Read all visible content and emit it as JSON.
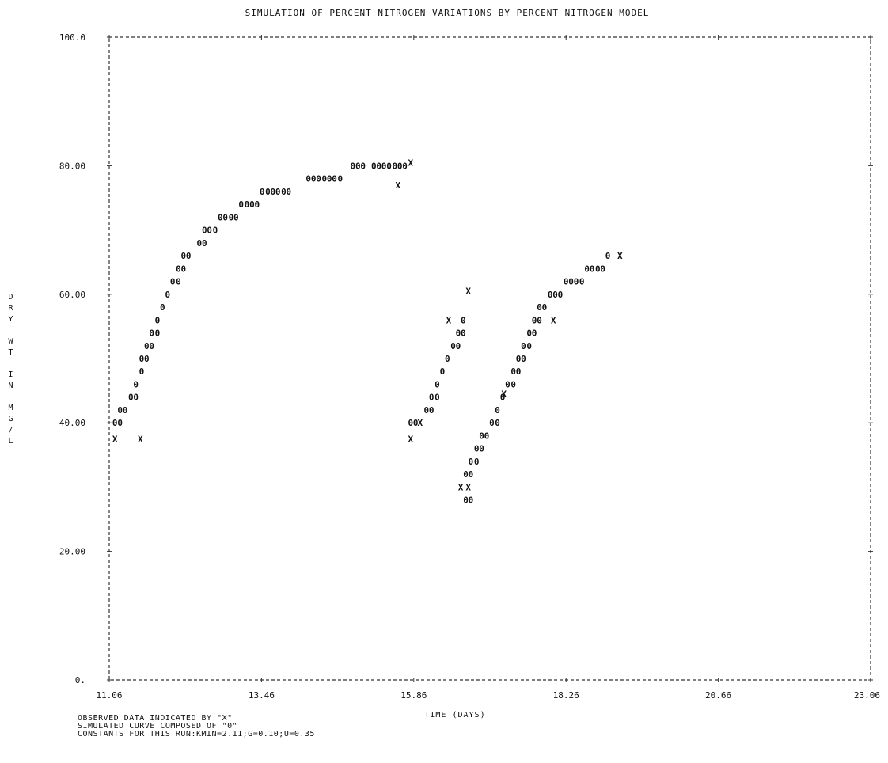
{
  "chart_data": {
    "type": "scatter",
    "title": "SIMULATION OF PERCENT NITROGEN VARIATIONS BY PERCENT NITROGEN MODEL",
    "xlabel": "TIME (DAYS)",
    "ylabel": "DRY WT IN MG/L",
    "xlim": [
      11.06,
      23.06
    ],
    "ylim": [
      0,
      100
    ],
    "x_ticks": [
      "11.06",
      "13.46",
      "15.86",
      "18.26",
      "20.66",
      "23.06"
    ],
    "y_ticks": [
      "0.",
      "20.00",
      "40.00",
      "60.00",
      "80.00",
      "100.0"
    ],
    "series": [
      {
        "name": "OBSERVED DATA",
        "marker": "X",
        "points": [
          [
            11.15,
            37.5
          ],
          [
            11.55,
            37.5
          ],
          [
            15.81,
            80.5
          ],
          [
            15.81,
            37.5
          ],
          [
            15.61,
            77.0
          ],
          [
            15.96,
            40.0
          ],
          [
            16.41,
            56.0
          ],
          [
            16.72,
            60.5
          ],
          [
            16.72,
            30.0
          ],
          [
            16.6,
            30.0
          ],
          [
            17.28,
            44.5
          ],
          [
            18.06,
            56.0
          ],
          [
            19.11,
            66.0
          ]
        ]
      },
      {
        "name": "SIMULATED CURVE",
        "marker": "0",
        "points": [
          [
            11.15,
            40.0
          ],
          [
            11.23,
            40.0
          ],
          [
            11.23,
            42.0
          ],
          [
            11.31,
            42.0
          ],
          [
            11.4,
            44.0
          ],
          [
            11.48,
            44.0
          ],
          [
            11.48,
            46.0
          ],
          [
            11.57,
            48.0
          ],
          [
            11.57,
            50.0
          ],
          [
            11.65,
            50.0
          ],
          [
            11.65,
            52.0
          ],
          [
            11.73,
            52.0
          ],
          [
            11.73,
            54.0
          ],
          [
            11.82,
            54.0
          ],
          [
            11.82,
            56.0
          ],
          [
            11.9,
            58.0
          ],
          [
            11.98,
            60.0
          ],
          [
            12.06,
            62.0
          ],
          [
            12.15,
            62.0
          ],
          [
            12.15,
            64.0
          ],
          [
            12.23,
            64.0
          ],
          [
            12.23,
            66.0
          ],
          [
            12.31,
            66.0
          ],
          [
            12.48,
            68.0
          ],
          [
            12.56,
            68.0
          ],
          [
            12.56,
            70.0
          ],
          [
            12.64,
            70.0
          ],
          [
            12.73,
            70.0
          ],
          [
            12.81,
            72.0
          ],
          [
            12.89,
            72.0
          ],
          [
            12.98,
            72.0
          ],
          [
            13.06,
            72.0
          ],
          [
            13.14,
            74.0
          ],
          [
            13.23,
            74.0
          ],
          [
            13.31,
            74.0
          ],
          [
            13.39,
            74.0
          ],
          [
            13.47,
            76.0
          ],
          [
            13.56,
            76.0
          ],
          [
            13.64,
            76.0
          ],
          [
            13.72,
            76.0
          ],
          [
            13.81,
            76.0
          ],
          [
            13.89,
            76.0
          ],
          [
            14.2,
            78.0
          ],
          [
            14.28,
            78.0
          ],
          [
            14.36,
            78.0
          ],
          [
            14.45,
            78.0
          ],
          [
            14.53,
            78.0
          ],
          [
            14.61,
            78.0
          ],
          [
            14.7,
            78.0
          ],
          [
            14.9,
            80.0
          ],
          [
            14.98,
            80.0
          ],
          [
            15.06,
            80.0
          ],
          [
            15.23,
            80.0
          ],
          [
            15.31,
            80.0
          ],
          [
            15.39,
            80.0
          ],
          [
            15.47,
            80.0
          ],
          [
            15.56,
            80.0
          ],
          [
            15.64,
            80.0
          ],
          [
            15.72,
            80.0
          ],
          [
            15.81,
            40.0
          ],
          [
            15.89,
            40.0
          ],
          [
            16.06,
            42.0
          ],
          [
            16.14,
            42.0
          ],
          [
            16.14,
            44.0
          ],
          [
            16.23,
            44.0
          ],
          [
            16.23,
            46.0
          ],
          [
            16.31,
            48.0
          ],
          [
            16.39,
            50.0
          ],
          [
            16.48,
            52.0
          ],
          [
            16.56,
            52.0
          ],
          [
            16.56,
            54.0
          ],
          [
            16.64,
            54.0
          ],
          [
            16.64,
            56.0
          ],
          [
            16.68,
            28.0
          ],
          [
            16.76,
            28.0
          ],
          [
            16.68,
            32.0
          ],
          [
            16.76,
            32.0
          ],
          [
            16.76,
            34.0
          ],
          [
            16.85,
            34.0
          ],
          [
            16.85,
            36.0
          ],
          [
            16.93,
            36.0
          ],
          [
            16.93,
            38.0
          ],
          [
            17.01,
            38.0
          ],
          [
            17.09,
            40.0
          ],
          [
            17.18,
            40.0
          ],
          [
            17.18,
            42.0
          ],
          [
            17.26,
            44.0
          ],
          [
            17.34,
            46.0
          ],
          [
            17.43,
            46.0
          ],
          [
            17.43,
            48.0
          ],
          [
            17.51,
            48.0
          ],
          [
            17.51,
            50.0
          ],
          [
            17.59,
            50.0
          ],
          [
            17.59,
            52.0
          ],
          [
            17.68,
            52.0
          ],
          [
            17.68,
            54.0
          ],
          [
            17.76,
            54.0
          ],
          [
            17.76,
            56.0
          ],
          [
            17.84,
            56.0
          ],
          [
            17.84,
            58.0
          ],
          [
            17.92,
            58.0
          ],
          [
            18.01,
            60.0
          ],
          [
            18.09,
            60.0
          ],
          [
            18.17,
            60.0
          ],
          [
            18.26,
            62.0
          ],
          [
            18.34,
            62.0
          ],
          [
            18.42,
            62.0
          ],
          [
            18.51,
            62.0
          ],
          [
            18.59,
            64.0
          ],
          [
            18.67,
            64.0
          ],
          [
            18.76,
            64.0
          ],
          [
            18.84,
            64.0
          ],
          [
            18.92,
            66.0
          ]
        ]
      }
    ],
    "grid": false,
    "legend": "none"
  },
  "notes": [
    "OBSERVED DATA INDICATED BY \"X\"",
    "SIMULATED CURVE COMPOSED OF \"0\"",
    "CONSTANTS FOR THIS RUN:KMIN=2.11;G=0.10;U=0.35"
  ]
}
